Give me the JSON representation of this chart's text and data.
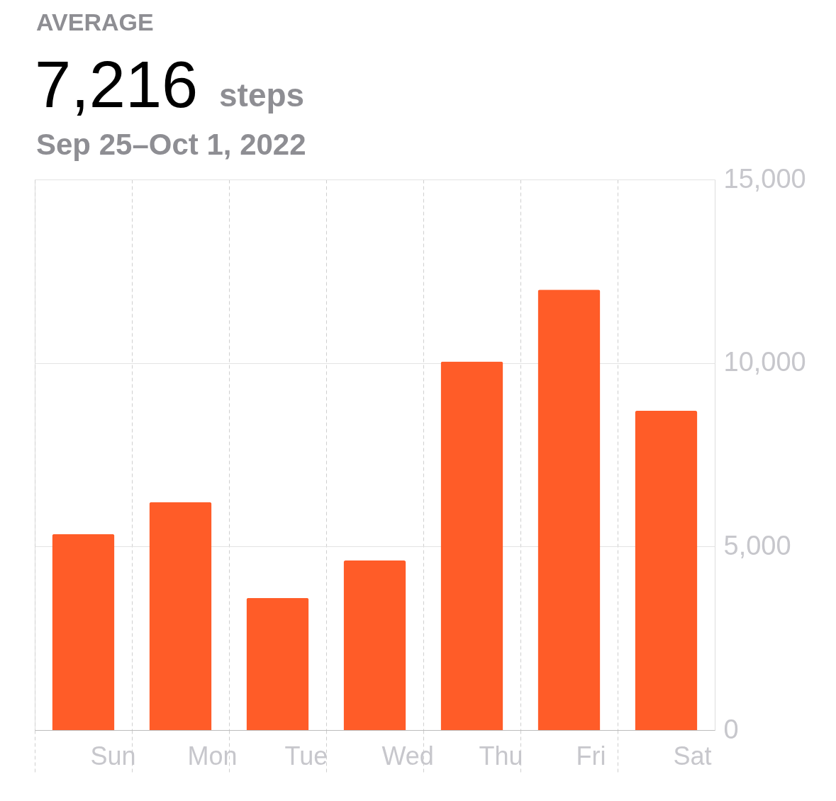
{
  "chart_data": {
    "type": "bar",
    "annotations": [
      "AVERAGE",
      "steps"
    ],
    "title": "7,216",
    "subtitle": "Sep 25–Oct 1, 2022",
    "categories": [
      "Sun",
      "Mon",
      "Tue",
      "Wed",
      "Thu",
      "Fri",
      "Sat"
    ],
    "values": [
      5340,
      6210,
      3600,
      4620,
      10040,
      12000,
      8700
    ],
    "color": "#ff5c28",
    "ylim": [
      0,
      15000
    ],
    "yticks": [
      0,
      {
        "value": 5000,
        "label": "5,000"
      },
      {
        "value": 10000,
        "label": "10,000"
      },
      {
        "value": 15000,
        "label": "15,000"
      }
    ],
    "grid": true
  }
}
